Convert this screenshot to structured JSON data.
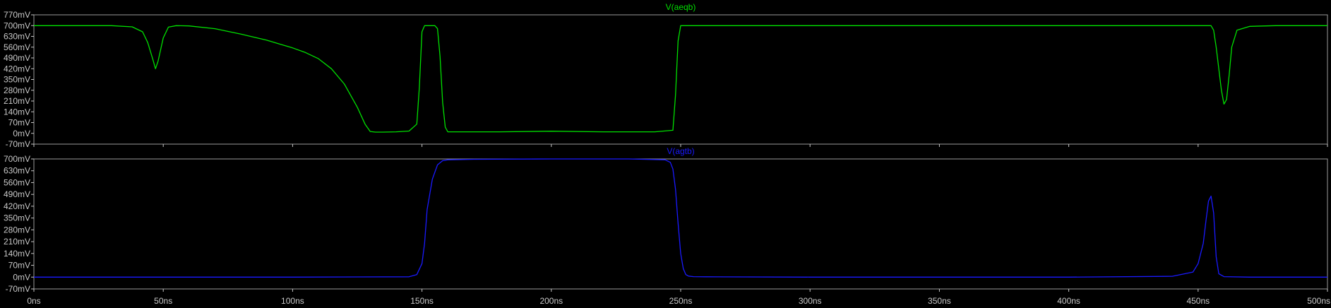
{
  "chart_data": [
    {
      "type": "line",
      "title": "V(aeqb)",
      "xlabel": "",
      "ylabel": "",
      "xunit": "ns",
      "yunit": "mV",
      "xlim": [
        0,
        500
      ],
      "ylim": [
        -70,
        770
      ],
      "yticks": [
        "770mV",
        "700mV",
        "630mV",
        "560mV",
        "490mV",
        "420mV",
        "350mV",
        "280mV",
        "210mV",
        "140mV",
        "70mV",
        "0mV",
        "-70mV"
      ],
      "grid": false,
      "series": [
        {
          "name": "V(aeqb)",
          "color": "#00e000",
          "x": [
            0,
            30,
            38,
            42,
            44,
            46,
            47,
            48,
            50,
            52,
            55,
            60,
            70,
            80,
            90,
            95,
            100,
            105,
            110,
            115,
            120,
            125,
            128,
            130,
            132,
            135,
            140,
            145,
            148,
            149,
            150,
            151,
            152,
            155,
            156,
            157,
            158,
            159,
            160,
            163,
            170,
            180,
            200,
            220,
            240,
            247,
            248,
            249,
            250,
            251,
            252,
            260,
            300,
            350,
            400,
            450,
            455,
            456,
            457,
            458,
            459,
            460,
            461,
            462,
            463,
            465,
            470,
            480,
            500
          ],
          "values": [
            700,
            700,
            692,
            660,
            590,
            480,
            420,
            470,
            620,
            690,
            700,
            698,
            680,
            645,
            605,
            580,
            555,
            525,
            485,
            420,
            320,
            170,
            60,
            12,
            8,
            8,
            10,
            15,
            60,
            300,
            660,
            700,
            700,
            700,
            680,
            500,
            200,
            40,
            10,
            10,
            10,
            10,
            14,
            10,
            10,
            20,
            250,
            600,
            700,
            700,
            700,
            700,
            700,
            700,
            700,
            700,
            700,
            670,
            560,
            420,
            280,
            190,
            220,
            380,
            560,
            670,
            695,
            700,
            700
          ]
        }
      ]
    },
    {
      "type": "line",
      "title": "V(agtb)",
      "xlabel": "",
      "ylabel": "",
      "xunit": "ns",
      "yunit": "mV",
      "xlim": [
        0,
        500
      ],
      "ylim": [
        -70,
        700
      ],
      "yticks": [
        "700mV",
        "630mV",
        "560mV",
        "490mV",
        "420mV",
        "350mV",
        "280mV",
        "210mV",
        "140mV",
        "70mV",
        "0mV",
        "-70mV"
      ],
      "xticks": [
        "0ns",
        "50ns",
        "100ns",
        "150ns",
        "200ns",
        "250ns",
        "300ns",
        "350ns",
        "400ns",
        "450ns",
        "500ns"
      ],
      "grid": false,
      "series": [
        {
          "name": "V(agtb)",
          "color": "#1a1aff",
          "x": [
            0,
            50,
            100,
            145,
            148,
            150,
            151,
            152,
            154,
            156,
            158,
            160,
            170,
            200,
            230,
            244,
            246,
            247,
            248,
            249,
            250,
            251,
            252,
            253,
            255,
            260,
            300,
            350,
            400,
            440,
            448,
            450,
            452,
            453,
            454,
            455,
            456,
            457,
            458,
            460,
            470,
            500
          ],
          "values": [
            0,
            0,
            0,
            2,
            15,
            80,
            200,
            400,
            580,
            665,
            690,
            695,
            698,
            700,
            700,
            695,
            680,
            640,
            520,
            320,
            140,
            50,
            15,
            6,
            3,
            2,
            0,
            0,
            0,
            5,
            30,
            80,
            200,
            330,
            450,
            480,
            380,
            120,
            20,
            3,
            0,
            0
          ]
        }
      ]
    }
  ]
}
